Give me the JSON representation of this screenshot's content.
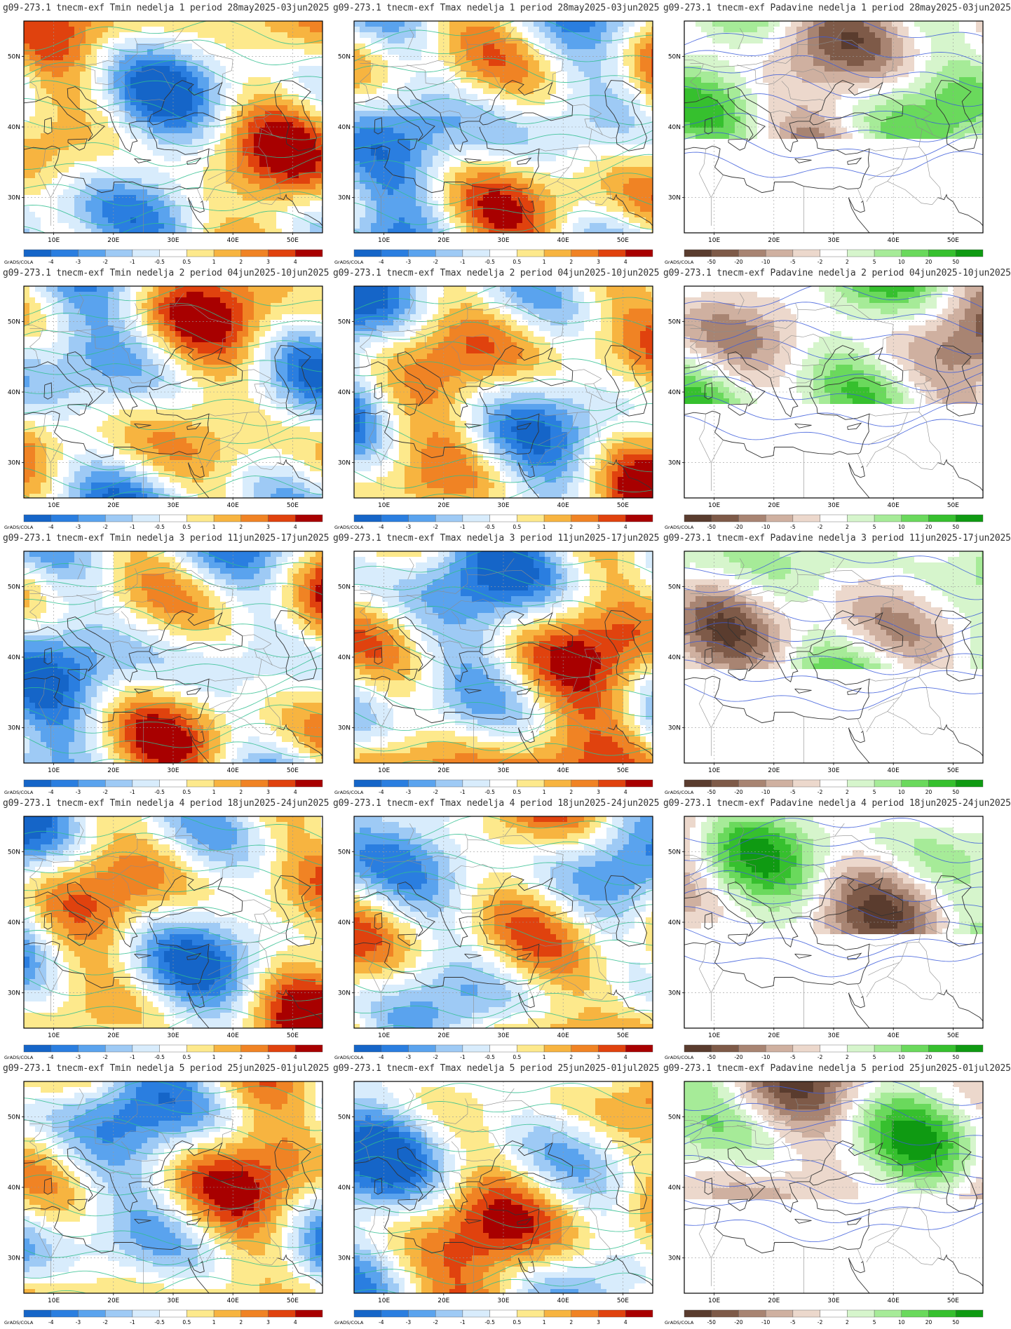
{
  "brand": "GrADS/COLA",
  "map": {
    "lon_ticks": [
      "10E",
      "20E",
      "30E",
      "40E",
      "50E"
    ],
    "lat_ticks": [
      "50N",
      "40N",
      "30N"
    ],
    "lon_range": [
      5,
      55
    ],
    "lat_range": [
      25,
      55
    ]
  },
  "legends": {
    "temperature": {
      "labels": [
        "-4",
        "-3",
        "-2",
        "-1",
        "-0.5",
        "0.5",
        "1",
        "2",
        "3",
        "4"
      ],
      "colors": [
        "#1565c8",
        "#2a7ee0",
        "#5aa3ee",
        "#9ecaf5",
        "#d8ecfc",
        "#ffffff",
        "#fde98c",
        "#f7b440",
        "#f08324",
        "#e0420e",
        "#a80000"
      ]
    },
    "precipitation": {
      "labels": [
        "-50",
        "-20",
        "-10",
        "-5",
        "-2",
        "2",
        "5",
        "10",
        "20",
        "50"
      ],
      "colors": [
        "#5a3c2e",
        "#7e5a48",
        "#a88472",
        "#cfb0a0",
        "#ecd8cc",
        "#ffffff",
        "#d6f5cc",
        "#a6eb98",
        "#6ad95c",
        "#36c02e",
        "#0f9a12"
      ]
    }
  },
  "contours": {
    "temperature_color": "#2fbf8f",
    "precipitation_color": "#3b5bdb"
  },
  "rows": [
    {
      "week": 1,
      "period": "28may2025-03jun2025"
    },
    {
      "week": 2,
      "period": "04jun2025-10jun2025"
    },
    {
      "week": 3,
      "period": "11jun2025-17jun2025"
    },
    {
      "week": 4,
      "period": "18jun2025-24jun2025"
    },
    {
      "week": 5,
      "period": "25jun2025-01jul2025"
    }
  ],
  "columns": [
    {
      "var": "Tmin",
      "legend": "temperature"
    },
    {
      "var": "Tmax",
      "legend": "temperature"
    },
    {
      "var": "Padavine",
      "legend": "precipitation"
    }
  ],
  "titles": [
    [
      "g09-273.1 tnecm-exf Tmin nedelja 1 period 28may2025-03jun2025",
      "g09-273.1 tnecm-exf Tmax nedelja 1 period 28may2025-03jun2025",
      "g09-273.1 tnecm-exf Padavine nedelja 1 period 28may2025-03jun2025"
    ],
    [
      "g09-273.1 tnecm-exf Tmin nedelja 2 period 04jun2025-10jun2025",
      "g09-273.1 tnecm-exf Tmax nedelja 2 period 04jun2025-10jun2025",
      "g09-273.1 tnecm-exf Padavine nedelja 2 period 04jun2025-10jun2025"
    ],
    [
      "g09-273.1 tnecm-exf Tmin nedelja 3 period 11jun2025-17jun2025",
      "g09-273.1 tnecm-exf Tmax nedelja 3 period 11jun2025-17jun2025",
      "g09-273.1 tnecm-exf Padavine nedelja 3 period 11jun2025-17jun2025"
    ],
    [
      "g09-273.1 tnecm-exf Tmin nedelja 4 period 18jun2025-24jun2025",
      "g09-273.1 tnecm-exf Tmax nedelja 4 period 18jun2025-24jun2025",
      "g09-273.1 tnecm-exf Padavine nedelja 4 period 18jun2025-24jun2025"
    ],
    [
      "g09-273.1 tnecm-exf Tmin nedelja 5 period 25jun2025-01jul2025",
      "g09-273.1 tnecm-exf Tmax nedelja 5 period 25jun2025-01jul2025",
      "g09-273.1 tnecm-exf Padavine nedelja 5 period 25jun2025-01jul2025"
    ]
  ]
}
